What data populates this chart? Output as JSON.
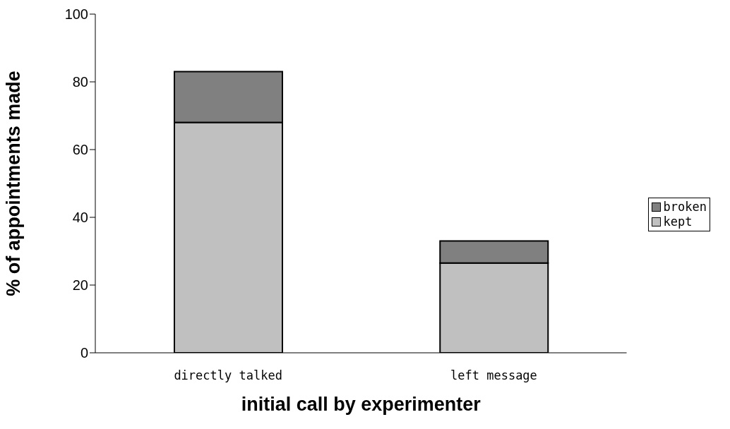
{
  "chart_data": {
    "type": "bar",
    "xlabel": "initial call by experimenter",
    "ylabel": "% of appointments made",
    "categories": [
      "directly talked",
      "left message"
    ],
    "stacked": true,
    "series": [
      {
        "name": "kept",
        "color": "#c0c0c0",
        "values": [
          68,
          26.5
        ]
      },
      {
        "name": "broken",
        "color": "#808080",
        "values": [
          15,
          6.5
        ]
      }
    ],
    "ylim": [
      0,
      100
    ],
    "yticks": [
      0,
      20,
      40,
      60,
      80,
      100
    ],
    "grid": false,
    "legend": "right"
  }
}
